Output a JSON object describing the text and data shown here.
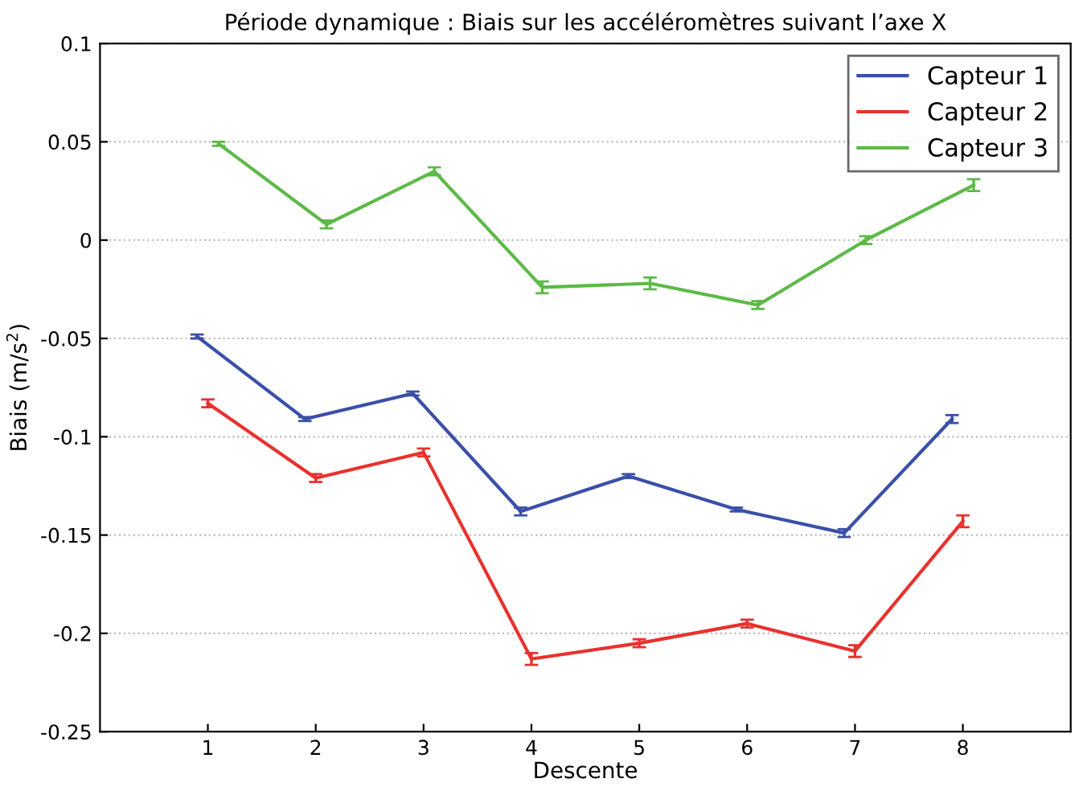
{
  "chart_data": {
    "type": "line",
    "title": "Période dynamique : Biais sur les accéléromètres suivant l’axe X",
    "xlabel": "Descente",
    "ylabel": "Biais (m/s$^{2}$)",
    "xlim": [
      0,
      9
    ],
    "xticks": [
      1,
      2,
      3,
      4,
      5,
      6,
      7,
      8
    ],
    "ylim": [
      -0.25,
      0.1
    ],
    "yticks": [
      -0.25,
      -0.2,
      -0.15,
      -0.1,
      -0.05,
      0,
      0.05,
      0.1
    ],
    "grid": "y",
    "legend": "top right",
    "marker": "none",
    "line_style": "solid",
    "series": [
      {
        "name": "Capteur 1",
        "color": "#3a50a8",
        "x": [
          0.9,
          1.9,
          2.9,
          3.9,
          4.9,
          5.9,
          6.9,
          7.9
        ],
        "values": [
          -0.049,
          -0.091,
          -0.078,
          -0.138,
          -0.12,
          -0.137,
          -0.149,
          -0.091
        ],
        "errors": [
          0.001,
          0.001,
          0.001,
          0.002,
          0.001,
          0.001,
          0.002,
          0.002
        ]
      },
      {
        "name": "Capteur 2",
        "color": "#e8322d",
        "x": [
          1,
          2,
          3,
          4,
          5,
          6,
          7,
          8
        ],
        "values": [
          -0.083,
          -0.121,
          -0.108,
          -0.213,
          -0.205,
          -0.195,
          -0.209,
          -0.143
        ],
        "errors": [
          0.002,
          0.002,
          0.002,
          0.003,
          0.002,
          0.002,
          0.003,
          0.003
        ]
      },
      {
        "name": "Capteur 3",
        "color": "#5cba47",
        "x": [
          1.1,
          2.1,
          3.1,
          4.1,
          5.1,
          6.1,
          7.1,
          8.1
        ],
        "values": [
          0.049,
          0.008,
          0.035,
          -0.024,
          -0.022,
          -0.033,
          0,
          0.028
        ],
        "errors": [
          0.001,
          0.002,
          0.002,
          0.003,
          0.003,
          0.002,
          0.002,
          0.003
        ]
      }
    ]
  }
}
